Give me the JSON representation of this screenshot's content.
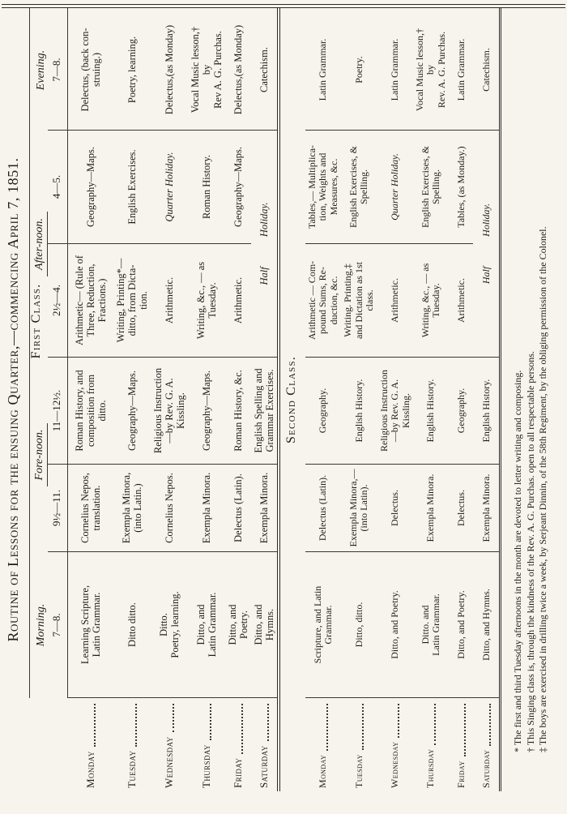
{
  "title": "Routine of Lessons for the ensuing Quarter,—commencing April 7, 1851.",
  "header": {
    "periods": {
      "morning": "Morning.",
      "forenoon": "Fore-noon.",
      "afternoon": "After-noon.",
      "evening": "Evening."
    },
    "times": {
      "morning": "7—8.",
      "forenoon1": "9½—11.",
      "forenoon2": "11—12½.",
      "afternoon1": "2½—4.",
      "afternoon2": "4—5.",
      "evening": "7—8."
    }
  },
  "first_class": {
    "heading": "First Class.",
    "rows": [
      {
        "day": "Monday",
        "morning": "Learning Scripture,\nLatin Grammar.",
        "forenoon1": "Cornelius Nepos,\ntranslation.",
        "forenoon2": "Roman History, and\ncomposition from\nditto.",
        "afternoon1": "Arithmetic— (Rule of\nThree, Reduction,\nFractions.)",
        "afternoon2": "Geography—Maps.",
        "evening": "Delectus, (back con-\nstruing.)"
      },
      {
        "day": "Tuesday",
        "morning": "Ditto ditto.",
        "forenoon1": "Exempla Minora,\n(into Latin.)",
        "forenoon2": "Geography—Maps.",
        "afternoon1": "Writing, Printing*—\nditto, from Dicta-\ntion.",
        "afternoon2": "English Exercises.",
        "evening": "Poetry, learning."
      },
      {
        "day": "Wednesday",
        "morning": "Ditto.\nPoetry, learning.",
        "forenoon1": "Cornelius Nepos.",
        "forenoon2": "Religious Instruction\n—by Rev. G. A.\nKissling.",
        "afternoon1": "Arithmetic.",
        "afternoon2": "Quarter Holiday.",
        "evening": "Delectus,(as Monday)"
      },
      {
        "day": "Thursday",
        "morning": "Ditto, and\nLatin Grammar.",
        "forenoon1": "Exempla Minora.",
        "forenoon2": "Geography—Maps.",
        "afternoon1": "Writing, &c., — as\nTuesday.",
        "afternoon2": "Roman History.",
        "evening": "Vocal Music lesson,†\nby\nRev A. G. Purchas."
      },
      {
        "day": "Friday",
        "morning": "Ditto, and\nPoetry.",
        "forenoon1": "Delectus (Latin).",
        "forenoon2": "Roman History, &c.",
        "afternoon1": "Arithmetic.",
        "afternoon2": "Geography—Maps.",
        "evening": "Delectus,(as Monday)"
      },
      {
        "day": "Saturday",
        "morning": "Ditto, and\nHymns.",
        "forenoon1": "Exempla Minora.",
        "forenoon2": "English Spelling and\nGrammar Exercises.",
        "afternoon_span": "Half Holiday.",
        "evening": "Catechism."
      }
    ]
  },
  "second_class": {
    "heading": "Second Class.",
    "rows": [
      {
        "day": "Monday",
        "morning": "Scripture, and Latin\nGrammar.",
        "forenoon1": "Delectus (Latin).",
        "forenoon2": "Geography.",
        "afternoon1": "Arithmetic — Com-\npound Sums, Re-\nduction, &c.",
        "afternoon2": "Tables,— Multiplica-\ntion, Weights and\nMeasures, &c.",
        "evening": "Latin Grammar."
      },
      {
        "day": "Tuesday",
        "morning": "Ditto, ditto.",
        "forenoon1": "Exempla Minora,—\n(into Latin).",
        "forenoon2": "English History.",
        "afternoon1": "Writing. Printing,‡\nand Dictation as 1st\nclass.",
        "afternoon2": "English Exercises, &\nSpelling.",
        "evening": "Poetry."
      },
      {
        "day": "Wednesday",
        "morning": "Ditto, and Poetry.",
        "forenoon1": "Delectus.",
        "forenoon2": "Religious Instruction\n—by Rev. G. A.\nKissling.",
        "afternoon1": "Arithmetic.",
        "afternoon2": "Quarter Holiday.",
        "evening": "Latin Grammar."
      },
      {
        "day": "Thursday",
        "morning": "Ditto. and\nLatin Grammar.",
        "forenoon1": "Exempla Minora.",
        "forenoon2": "English History.",
        "afternoon1": "Writing, &c., — as\nTuesday.",
        "afternoon2": "English Exercises, &\nSpelling.",
        "evening": "Vocal Music lesson,†\nby\nRev. A. G. Purchas."
      },
      {
        "day": "Friday",
        "morning": "Ditto, and Poetry.",
        "forenoon1": "Delectus.",
        "forenoon2": "Geography.",
        "afternoon1": "Arithmetic.",
        "afternoon2": "Tables, (as Monday.)",
        "evening": "Latin Grammar."
      },
      {
        "day": "Saturday",
        "morning": "Ditto, and Hymns.",
        "forenoon1": "Exempla Minora.",
        "forenoon2": "English History.",
        "afternoon_span": "Half Holiday.",
        "evening": "Catechism."
      }
    ]
  },
  "footnotes": [
    "* The first and third Tuesday afternoons in the month are devoted to letter writing and composing.",
    "† This Singing class is, through the kindness of the Rev. A. G. Purchas. open to all respectable persons.",
    "‡ The boys are exercised in drilling twice a week, by Serjeant Dinnin, of the 58th Regiment, by the obliging permission of the Colonel."
  ],
  "colors": {
    "paper": "#f6f4ed",
    "ink": "#1e1c18"
  }
}
